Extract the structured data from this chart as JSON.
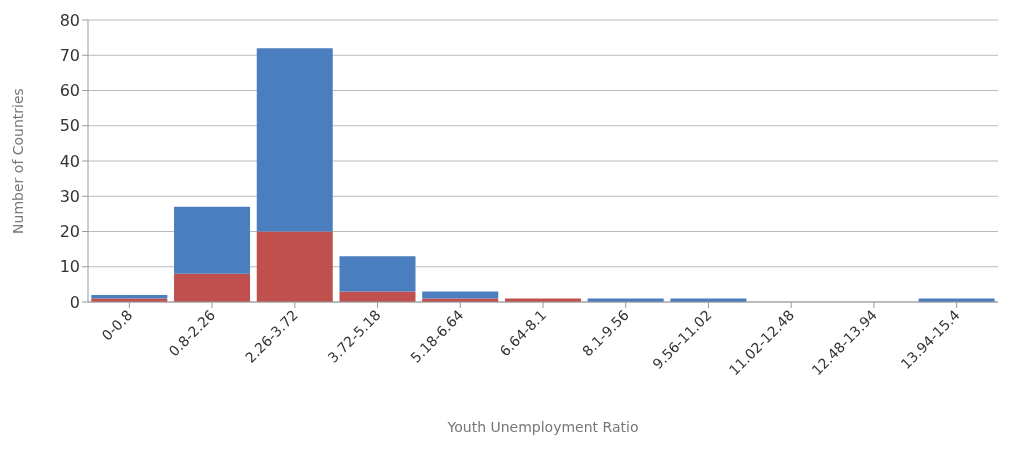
{
  "chart_data": {
    "type": "bar",
    "xlabel": "Youth Unemployment Ratio",
    "ylabel": "Number of Countries",
    "categories": [
      "0-0.8",
      "0.8-2.26",
      "2.26-3.72",
      "3.72-5.18",
      "5.18-6.64",
      "6.64-8.1",
      "8.1-9.56",
      "9.56-11.02",
      "11.02-12.48",
      "12.48-13.94",
      "13.94-15.4"
    ],
    "stacked": true,
    "series": [
      {
        "color": "#c0504d",
        "values": [
          1,
          8,
          20,
          3,
          1,
          1,
          0,
          0,
          0,
          0,
          0
        ]
      },
      {
        "color": "#4a7ebf",
        "values": [
          1,
          19,
          52,
          10,
          2,
          0,
          1,
          1,
          0,
          0,
          1
        ]
      }
    ],
    "ylim": [
      0,
      80
    ],
    "yticks": [
      0,
      10,
      20,
      30,
      40,
      50,
      60,
      70,
      80
    ],
    "grid": "y"
  }
}
